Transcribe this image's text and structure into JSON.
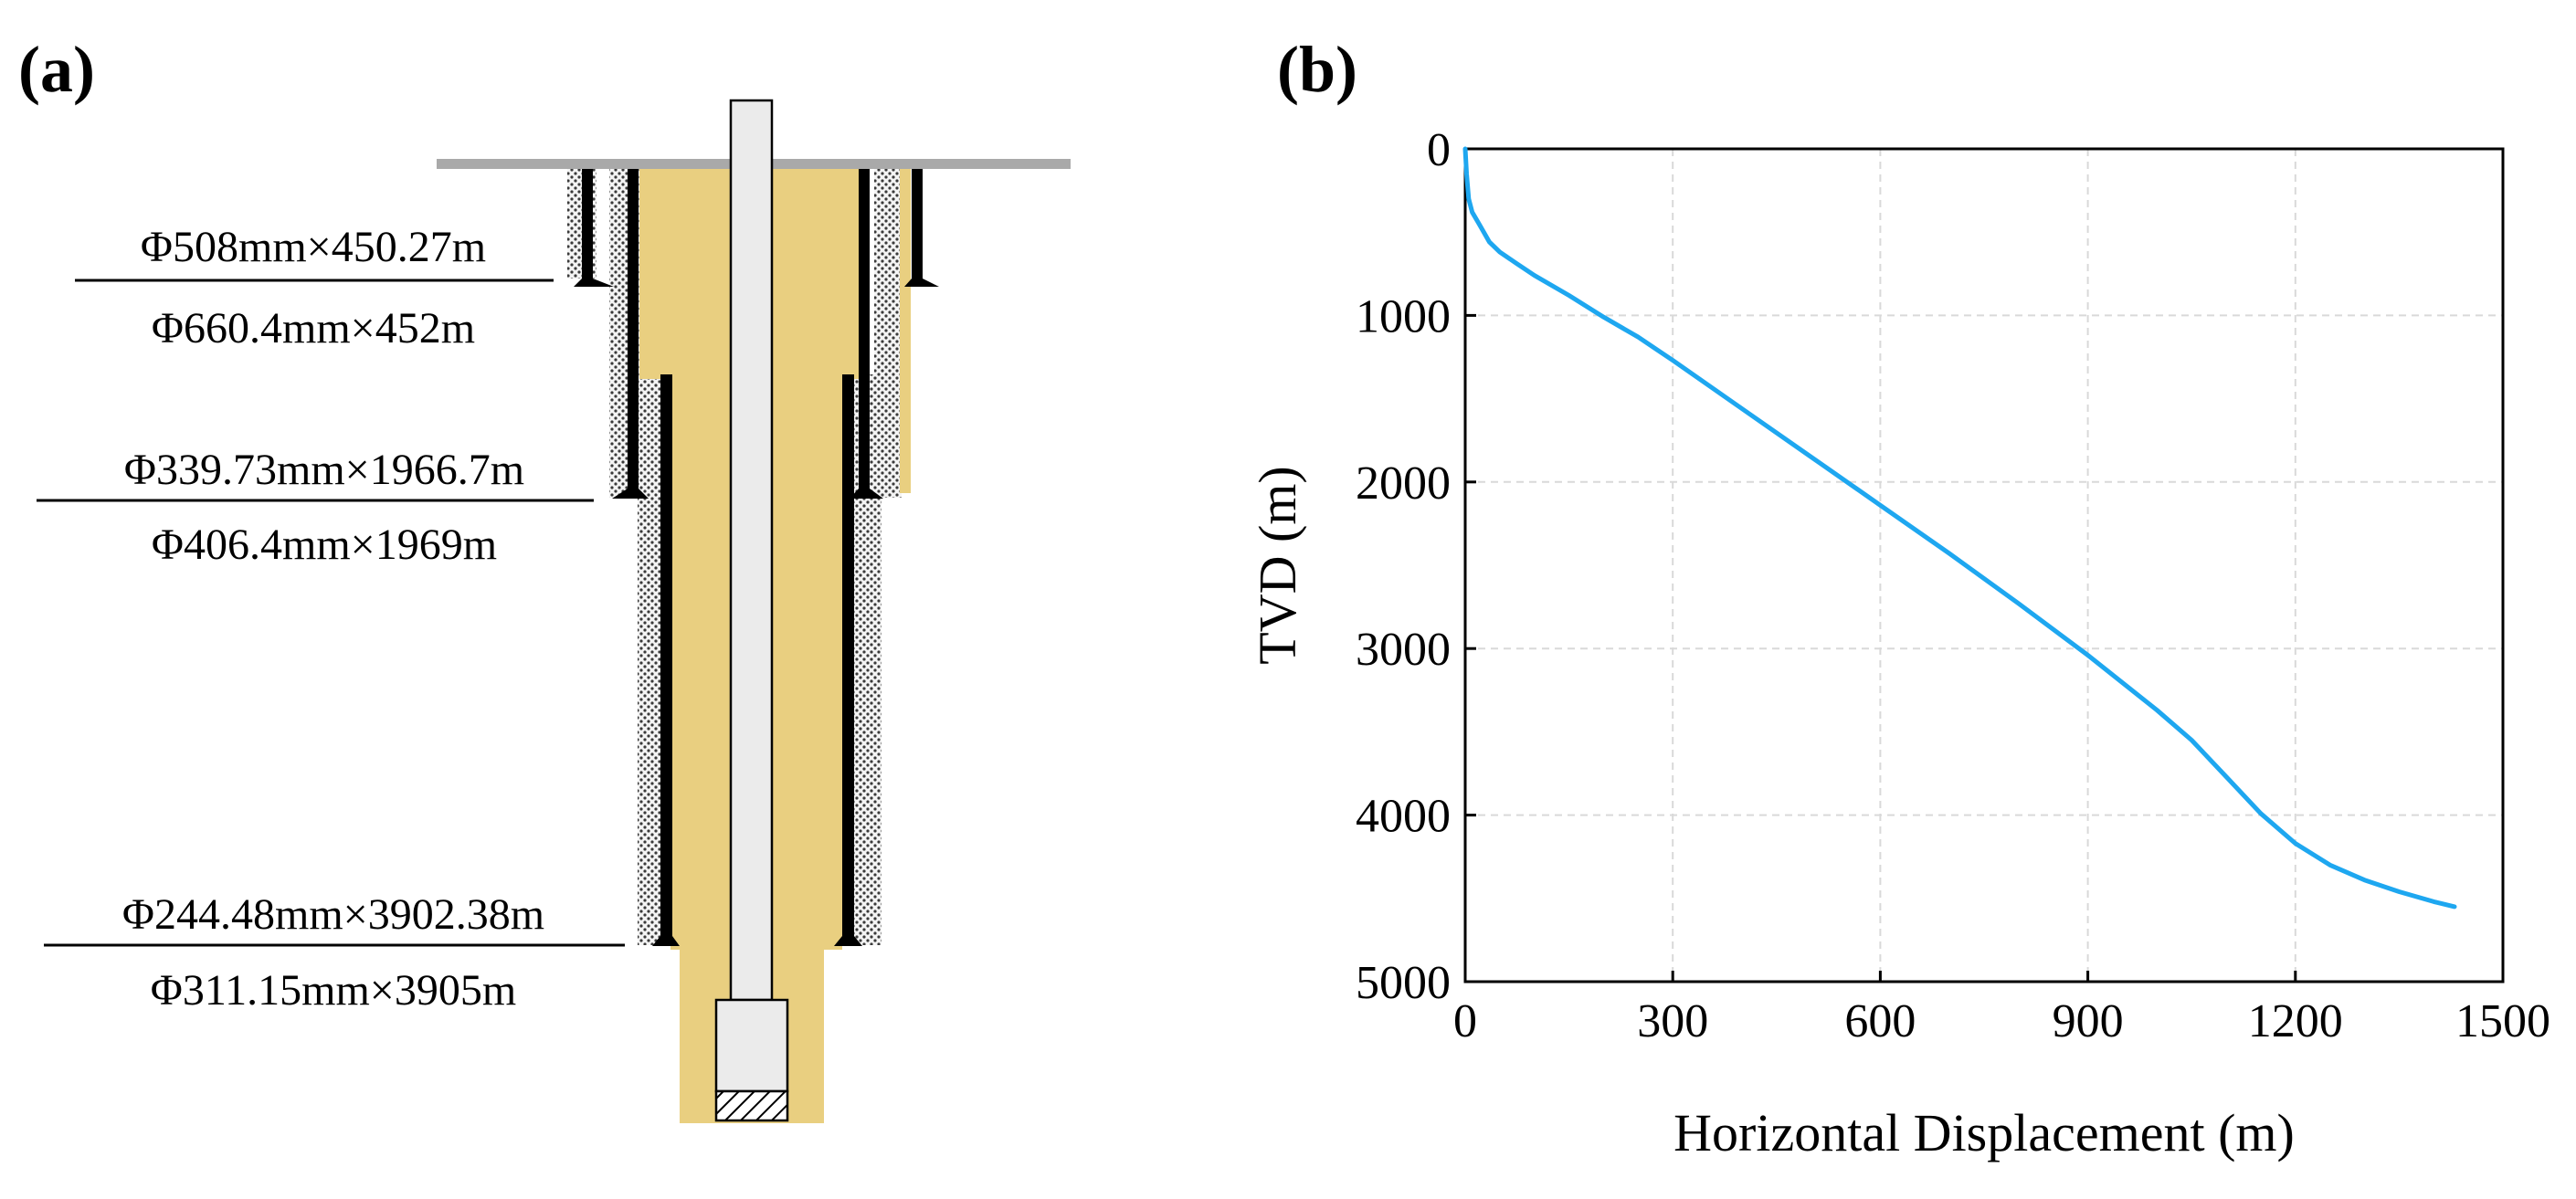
{
  "panel_a": {
    "label": "(a)",
    "casings": [
      {
        "casing": "Φ508mm×450.27m",
        "hole": "Φ660.4mm×452m"
      },
      {
        "casing": "Φ339.73mm×1966.7m",
        "hole": "Φ406.4mm×1969m"
      },
      {
        "casing": "Φ244.48mm×3902.38m",
        "hole": "Φ311.15mm×3905m"
      }
    ]
  },
  "panel_b": {
    "label": "(b)",
    "xlabel": "Horizontal Displacement (m)",
    "ylabel": "TVD (m)",
    "xticks": [
      "0",
      "300",
      "600",
      "900",
      "1200",
      "1500"
    ],
    "yticks": [
      "0",
      "1000",
      "2000",
      "3000",
      "4000",
      "5000"
    ]
  },
  "colors": {
    "cement": "#E9CF80",
    "curve": "#1EA7F0",
    "ground": "#A9A9A9",
    "grid": "#D9D9D9"
  },
  "chart_data": {
    "type": "line",
    "title": "",
    "xlabel": "Horizontal Displacement (m)",
    "ylabel": "TVD (m)",
    "xlim": [
      0,
      1500
    ],
    "ylim": [
      0,
      5000
    ],
    "y_inverted": true,
    "grid": true,
    "series": [
      {
        "x": [
          0,
          2,
          5,
          10,
          20,
          35,
          50,
          75,
          100,
          150,
          200,
          250,
          300,
          400,
          500,
          600,
          700,
          800,
          900,
          1000,
          1050,
          1100,
          1150,
          1200,
          1250,
          1300,
          1350,
          1400,
          1430
        ],
        "y": [
          0,
          150,
          300,
          380,
          450,
          560,
          620,
          690,
          760,
          880,
          1010,
          1130,
          1270,
          1560,
          1850,
          2140,
          2430,
          2730,
          3040,
          3370,
          3550,
          3770,
          3990,
          4170,
          4300,
          4390,
          4460,
          4520,
          4550
        ]
      }
    ]
  }
}
